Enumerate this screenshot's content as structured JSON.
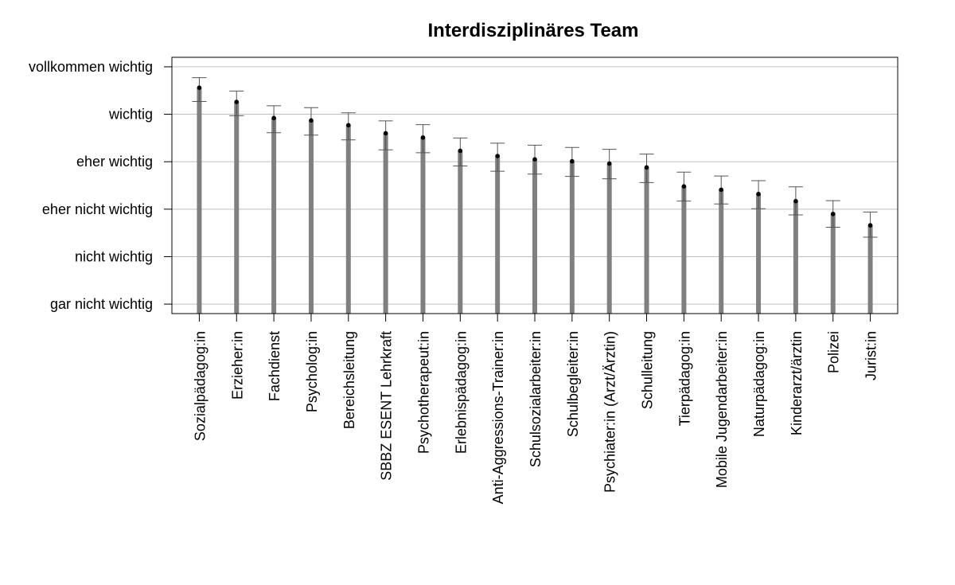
{
  "chart_data": {
    "type": "bar",
    "title": "Interdisziplinäres Team",
    "xlabel": "",
    "ylabel": "",
    "y_levels": [
      "gar nicht wichtig",
      "nicht wichtig",
      "eher nicht wichtig",
      "eher wichtig",
      "wichtig",
      "vollkommen wichtig"
    ],
    "ylim": [
      0.8,
      6.2
    ],
    "grid": true,
    "categories": [
      "Sozialpädagog:in",
      "Erzieher:in",
      "Fachdienst",
      "Psycholog:in",
      "Bereichsleitung",
      "SBBZ ESENT Lehrkraft",
      "Psychotherapeut:in",
      "Erlebnispädagog:in",
      "Anti-Aggressions-Trainer:in",
      "Schulsozialarbeiter:in",
      "Schulbegleiter:in",
      "Psychiater:in (Arzt/Ärztin)",
      "Schulleitung",
      "Tierpädagog:in",
      "Mobile Jugendarbeiter:in",
      "Naturpädagog:in",
      "Kinderarzt/ärztin",
      "Polizei",
      "Jurist:in"
    ],
    "values": [
      5.56,
      5.26,
      4.92,
      4.87,
      4.77,
      4.6,
      4.51,
      4.23,
      4.12,
      4.05,
      4.01,
      3.96,
      3.88,
      3.48,
      3.41,
      3.32,
      3.17,
      2.9,
      2.66
    ],
    "ci_lower": [
      5.27,
      4.97,
      4.61,
      4.56,
      4.46,
      4.25,
      4.19,
      3.91,
      3.8,
      3.74,
      3.69,
      3.64,
      3.56,
      3.17,
      3.11,
      3.01,
      2.88,
      2.62,
      2.41
    ],
    "ci_upper": [
      5.77,
      5.49,
      5.18,
      5.14,
      5.03,
      4.86,
      4.78,
      4.5,
      4.39,
      4.35,
      4.3,
      4.26,
      4.16,
      3.78,
      3.7,
      3.6,
      3.47,
      3.18,
      2.94
    ],
    "colors": {
      "bar": "#808080",
      "point": "#000000",
      "grid": "#bfbfbf",
      "errorbar": "#555555"
    }
  }
}
